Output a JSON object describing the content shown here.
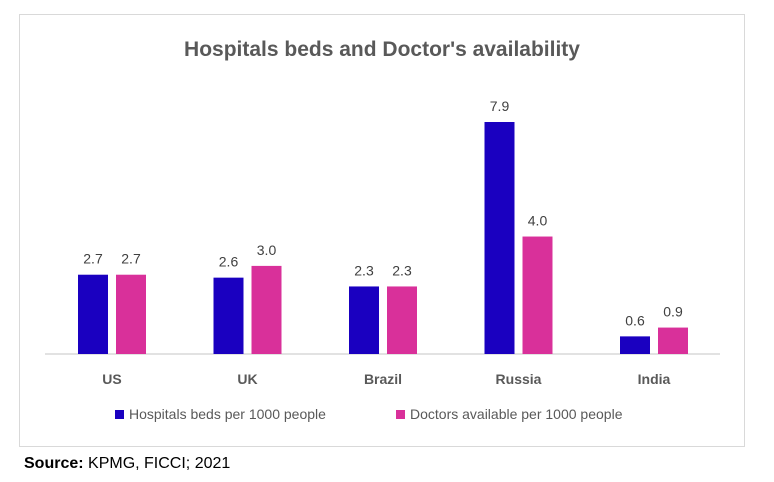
{
  "chart_data": {
    "type": "bar",
    "title": "Hospitals beds and Doctor's availability",
    "categories": [
      "US",
      "UK",
      "Brazil",
      "Russia",
      "India"
    ],
    "series": [
      {
        "name": "Hospitals beds per 1000 people",
        "color": "#1a00c0",
        "values": [
          2.7,
          2.6,
          2.3,
          7.9,
          0.6
        ]
      },
      {
        "name": "Doctors available per 1000 people",
        "color": "#d9309a",
        "values": [
          2.7,
          3.0,
          2.3,
          4.0,
          0.9
        ]
      }
    ],
    "xlabel": "",
    "ylabel": "",
    "ylim": [
      0,
      7.9
    ],
    "grid": false,
    "legend": "bottom"
  },
  "source": {
    "label": "Source:",
    "text": " KPMG, FICCI; 2021"
  }
}
